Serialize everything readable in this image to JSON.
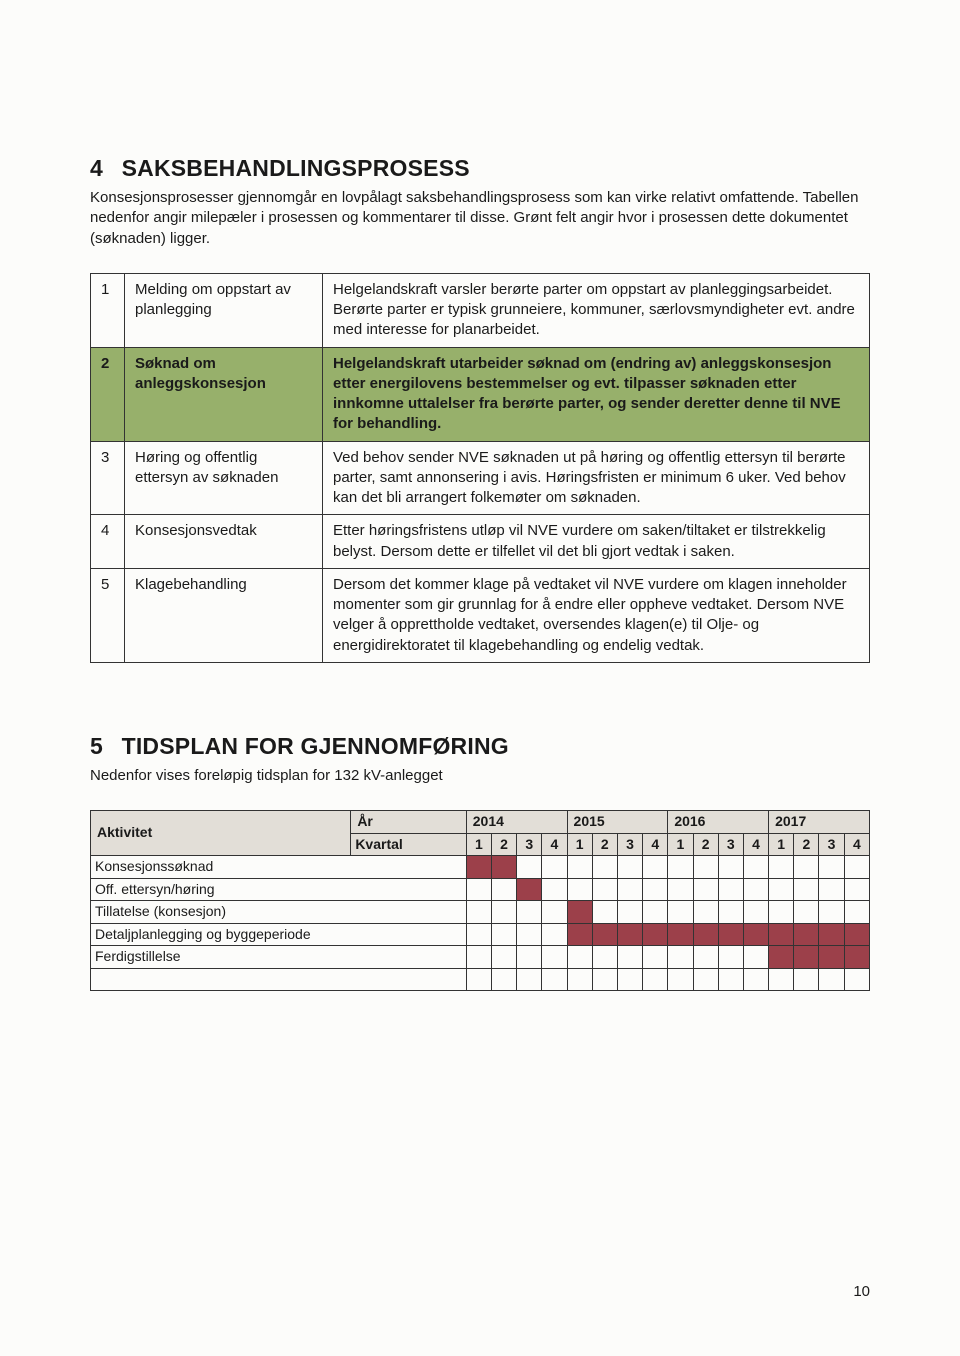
{
  "page_number": "10",
  "section4": {
    "number": "4",
    "title": "SAKSBEHANDLINGSPROSESS",
    "intro": "Konsesjonsprosesser gjennomgår en lovpålagt saksbehandlingsprosess som kan virke relativt omfattende. Tabellen nedenfor angir milepæler i prosessen og kommentarer til disse. Grønt felt angir hvor i prosessen dette dokumentet (søknaden) ligger.",
    "rows": [
      {
        "n": "1",
        "title": "Melding om oppstart av planlegging",
        "desc": "Helgelandskraft varsler berørte parter om oppstart av planleggingsarbeidet. Berørte parter er typisk grunneiere, kommuner, særlovsmyndigheter evt. andre med interesse for planarbeidet.",
        "highlight": false
      },
      {
        "n": "2",
        "title": "Søknad om anleggskonsesjon",
        "desc": "Helgelandskraft utarbeider søknad om (endring av) anleggskonsesjon etter energilovens bestemmelser og evt. tilpasser søknaden etter innkomne uttalelser fra berørte parter, og sender deretter denne til NVE for behandling.",
        "highlight": true
      },
      {
        "n": "3",
        "title": "Høring og offentlig ettersyn av søknaden",
        "desc": "Ved behov sender NVE søknaden ut på høring og offentlig ettersyn til berørte parter, samt annonsering i avis. Høringsfristen er minimum 6 uker. Ved behov kan det bli arrangert folkemøter om søknaden.",
        "highlight": false
      },
      {
        "n": "4",
        "title": "Konsesjonsvedtak",
        "desc": "Etter høringsfristens utløp vil NVE vurdere om saken/tiltaket er tilstrekkelig belyst. Dersom dette er tilfellet vil det bli gjort vedtak i saken.",
        "highlight": false
      },
      {
        "n": "5",
        "title": "Klagebehandling",
        "desc": "Dersom det kommer klage på vedtaket vil NVE vurdere om klagen inneholder momenter som gir grunnlag for å endre eller oppheve vedtaket. Dersom NVE velger å opprettholde vedtaket, oversendes klagen(e) til Olje- og energidirektoratet til klagebehandling og endelig vedtak.",
        "highlight": false
      }
    ]
  },
  "section5": {
    "number": "5",
    "title": "TIDSPLAN FOR GJENNOMFØRING",
    "intro": "Nedenfor vises foreløpig tidsplan for 132 kV-anlegget",
    "header": {
      "activity": "Aktivitet",
      "year": "År",
      "quarter": "Kvartal"
    },
    "years": [
      "2014",
      "2015",
      "2016",
      "2017"
    ],
    "quarters": [
      "1",
      "2",
      "3",
      "4"
    ],
    "activities": [
      {
        "label": "Konsesjonssøknad",
        "fill": [
          1,
          1,
          0,
          0,
          0,
          0,
          0,
          0,
          0,
          0,
          0,
          0,
          0,
          0,
          0,
          0
        ]
      },
      {
        "label": "Off. ettersyn/høring",
        "fill": [
          0,
          0,
          1,
          0,
          0,
          0,
          0,
          0,
          0,
          0,
          0,
          0,
          0,
          0,
          0,
          0
        ]
      },
      {
        "label": "Tillatelse (konsesjon)",
        "fill": [
          0,
          0,
          0,
          0,
          1,
          0,
          0,
          0,
          0,
          0,
          0,
          0,
          0,
          0,
          0,
          0
        ]
      },
      {
        "label": "Detaljplanlegging og byggeperiode",
        "fill": [
          0,
          0,
          0,
          0,
          1,
          1,
          1,
          1,
          1,
          1,
          1,
          1,
          1,
          1,
          1,
          1
        ]
      },
      {
        "label": "Ferdigstillelse",
        "fill": [
          0,
          0,
          0,
          0,
          0,
          0,
          0,
          0,
          0,
          0,
          0,
          0,
          1,
          1,
          1,
          1
        ]
      }
    ],
    "colors": {
      "header_bg": "#e2ded7",
      "fill": "#9c404a",
      "highlight_row": "#97b06b"
    }
  }
}
